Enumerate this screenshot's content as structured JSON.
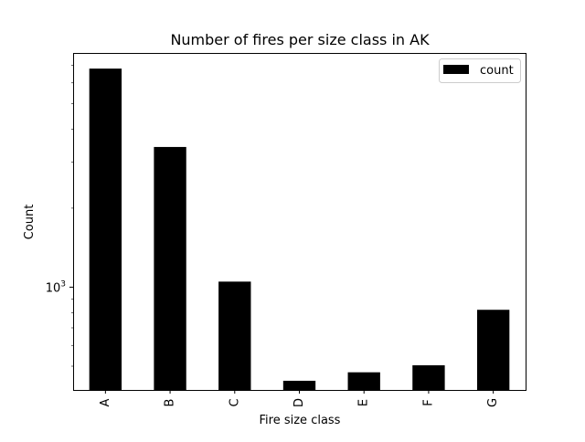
{
  "chart_data": {
    "type": "bar",
    "title": "Number of fires per size class in AK",
    "xlabel": "Fire size class",
    "ylabel": "Count",
    "categories": [
      "A",
      "B",
      "C",
      "D",
      "E",
      "F",
      "G"
    ],
    "series": [
      {
        "name": "count",
        "values": [
          6800,
          3420,
          1050,
          440,
          474,
          504,
          820
        ],
        "color": "#000000"
      }
    ],
    "yscale": "log",
    "ylim": [
      406,
      7800
    ],
    "yticks": [
      {
        "value": 1000,
        "base": "10",
        "exponent": "3"
      }
    ],
    "grid": false,
    "legend_position": "upper right"
  }
}
